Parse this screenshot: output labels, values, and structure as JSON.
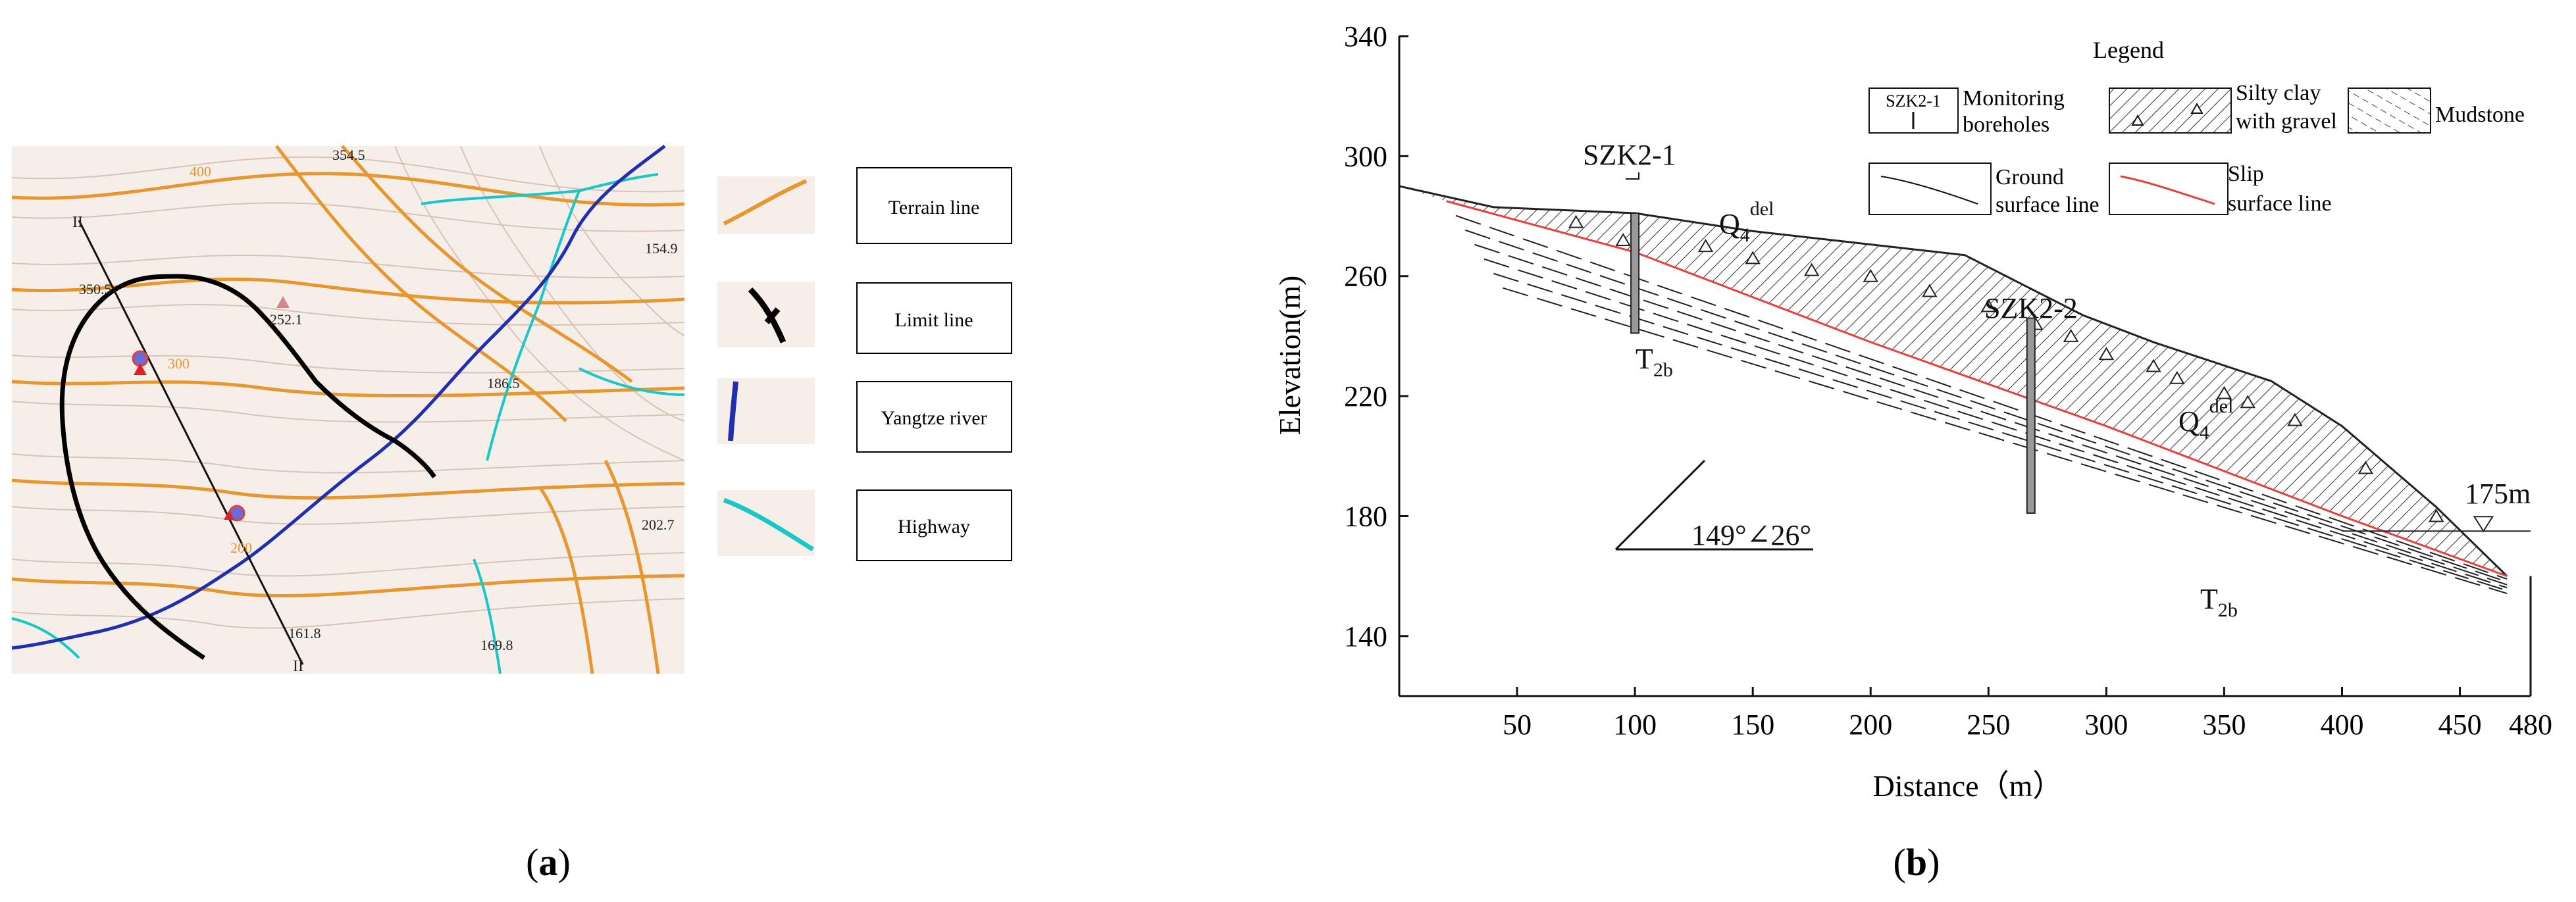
{
  "panel_a": {
    "caption": "(a)",
    "elevation_labels": [
      "354.5",
      "400",
      "350.5",
      "252.1",
      "300",
      "186.5",
      "154.9",
      "200",
      "202.7",
      "161.8",
      "169.8"
    ],
    "profile_marks": [
      "II",
      "II"
    ],
    "legend": [
      {
        "label": "Terrain line",
        "icon": "terrain-line-swatch",
        "color": "#e8962e"
      },
      {
        "label": "Limit line",
        "icon": "limit-line-swatch",
        "color": "#000000"
      },
      {
        "label": "Yangtze river",
        "icon": "river-line-swatch",
        "color": "#1f2fb0"
      },
      {
        "label": "Highway",
        "icon": "highway-line-swatch",
        "color": "#18c8c8"
      }
    ]
  },
  "panel_b": {
    "caption": "(b)",
    "legend_title": "Legend",
    "legend": {
      "monitoring": {
        "symbol_text": "SZK2-1",
        "label_line1": "Monitoring",
        "label_line2": "boreholes"
      },
      "silty": {
        "label_line1": "Silty clay",
        "label_line2": "with gravel"
      },
      "mudstone": {
        "label": "Mudstone"
      },
      "ground": {
        "label_line1": "Ground",
        "label_line2": "surface line"
      },
      "slip": {
        "label_line1": "Slip",
        "label_line2": "surface line",
        "color": "#e84040"
      }
    },
    "boreholes": [
      "SZK2-1",
      "SZK2-2"
    ],
    "q4_labels": [
      {
        "base": "Q",
        "sub": "4",
        "sup": "del"
      },
      {
        "base": "Q",
        "sub": "4",
        "sup": "del"
      }
    ],
    "t2b_labels": [
      {
        "base": "T",
        "sub": "2b"
      },
      {
        "base": "T",
        "sub": "2b"
      }
    ],
    "dip": "149°∠26°",
    "water_level": "175m"
  },
  "chart_data": {
    "type": "line",
    "xlabel": "Distance（m）",
    "ylabel": "Elevation(m)",
    "xlim": [
      0,
      480
    ],
    "ylim": [
      120,
      340
    ],
    "x_ticks": [
      50,
      100,
      150,
      200,
      250,
      300,
      350,
      400,
      450,
      480
    ],
    "y_ticks": [
      140,
      180,
      220,
      260,
      300,
      340
    ],
    "series": [
      {
        "name": "Ground surface line",
        "x": [
          0,
          40,
          100,
          150,
          240,
          290,
          320,
          370,
          400,
          440,
          470
        ],
        "y": [
          290,
          283,
          281,
          275,
          267,
          247,
          238,
          225,
          210,
          183,
          160
        ]
      },
      {
        "name": "Slip surface line",
        "x": [
          20,
          100,
          200,
          300,
          400,
          470
        ],
        "y": [
          285,
          268,
          238,
          210,
          180,
          160
        ]
      }
    ],
    "boreholes": [
      {
        "name": "SZK2-1",
        "x": 100,
        "top": 281,
        "bottom": 241
      },
      {
        "name": "SZK2-2",
        "x": 268,
        "top": 246,
        "bottom": 181
      }
    ],
    "water_level": 175
  }
}
